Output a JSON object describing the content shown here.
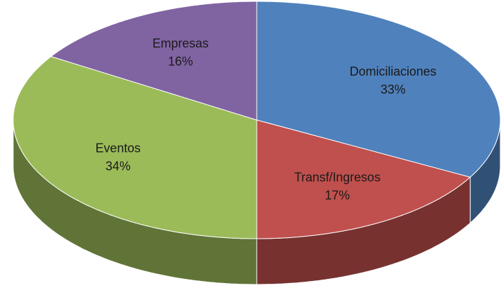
{
  "chart_data": {
    "type": "pie",
    "categories": [
      "Domiciliaciones",
      "Transf/Ingresos",
      "Eventos",
      "Empresas"
    ],
    "values": [
      33,
      17,
      34,
      16
    ],
    "value_labels": [
      "33%",
      "17%",
      "34%",
      "16%"
    ],
    "colors": [
      "#4f81bd",
      "#c0504d",
      "#9bbb59",
      "#8064a2"
    ]
  }
}
